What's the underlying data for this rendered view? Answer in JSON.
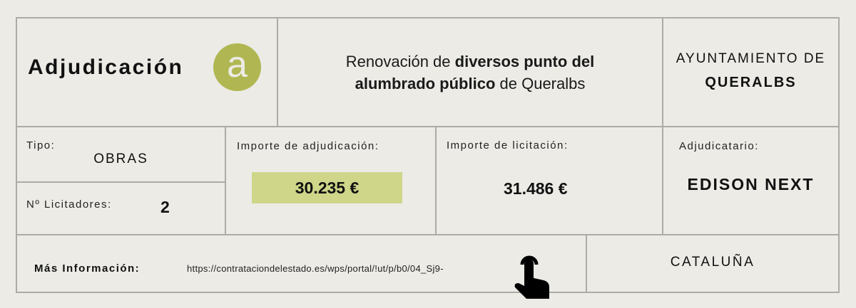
{
  "header": {
    "title": "Adjudicación",
    "badge_letter": "a",
    "project_title_parts": [
      {
        "text": "Renovación de ",
        "bold": false
      },
      {
        "text": "diversos punto del",
        "bold": true
      },
      {
        "text": "alumbrado público",
        "bold": true
      },
      {
        "text": " de Queralbs",
        "bold": false
      }
    ],
    "entity_prefix": "AYUNTAMIENTO DE",
    "entity_name": "QUERALBS"
  },
  "details": {
    "tipo_label": "Tipo:",
    "tipo_value": "OBRAS",
    "licitadores_label": "Nº Licitadores:",
    "licitadores_value": "2",
    "adjudicacion_label": "Importe de adjudicación:",
    "adjudicacion_value": "30.235 €",
    "licitacion_label": "Importe de licitación:",
    "licitacion_value": "31.486 €",
    "adjudicatario_label": "Adjudicatario:",
    "adjudicatario_value": "EDISON NEXT"
  },
  "footer": {
    "more_info_label": "Más Información:",
    "url": "https://contrataciondelestado.es/wps/portal/!ut/p/b0/04_Sj9-",
    "region": "CATALUÑA",
    "icon": "pointing-hand-icon"
  },
  "colors": {
    "badge": "#b0b752",
    "highlight": "#cfd68a",
    "border": "#adaba5",
    "background": "#ecebe6"
  }
}
